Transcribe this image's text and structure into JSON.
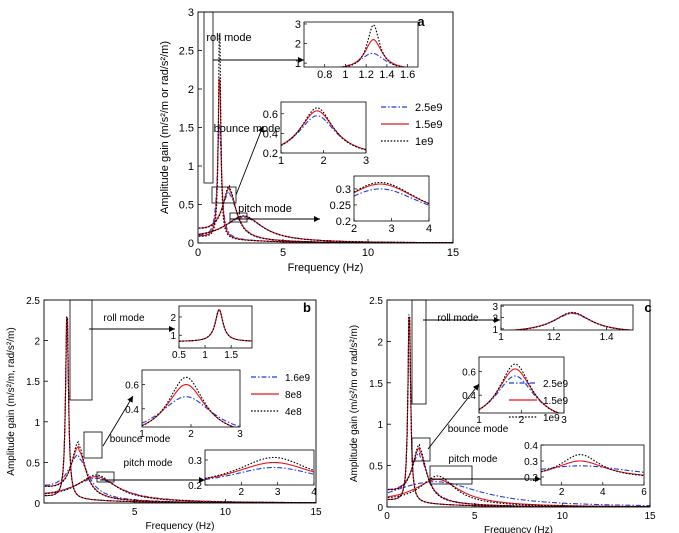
{
  "chart_data": [
    {
      "type": "line",
      "panel_label": "a",
      "xlabel": "Frequency (Hz)",
      "ylabel": "Amplitude gain (m/s²/m or rad/s²/m)",
      "xlim": [
        0,
        15
      ],
      "ylim": [
        0,
        3
      ],
      "xticks": [
        0,
        5,
        10,
        15
      ],
      "yticks": [
        0,
        0.5,
        1,
        1.5,
        2,
        2.5,
        3
      ],
      "legend": "right",
      "series": [
        {
          "name": "2.5e9",
          "color": "#1f3fd6",
          "style": "dashdot",
          "roll": [
            1.26,
            1.5,
            0.32
          ],
          "bounce": [
            1.85,
            0.58,
            0.6
          ],
          "pitch": [
            2.7,
            0.3,
            1.0
          ]
        },
        {
          "name": "1.5e9",
          "color": "#e8141c",
          "style": "solid",
          "roll": [
            1.27,
            2.2,
            0.22
          ],
          "bounce": [
            1.85,
            0.63,
            0.56
          ],
          "pitch": [
            2.7,
            0.315,
            0.95
          ]
        },
        {
          "name": "1e9",
          "color": "#000000",
          "style": "dotted",
          "roll": [
            1.27,
            2.95,
            0.16
          ],
          "bounce": [
            1.85,
            0.66,
            0.52
          ],
          "pitch": [
            2.7,
            0.32,
            0.92
          ]
        }
      ],
      "insets": [
        {
          "label": "roll mode",
          "xlim": [
            0.6,
            1.7
          ],
          "ylim": [
            0.8,
            3.1
          ],
          "xticks": [
            0.8,
            1,
            1.2,
            1.4,
            1.6
          ],
          "yticks": [
            1,
            2,
            3
          ]
        },
        {
          "label": "bounce mode",
          "xlim": [
            1,
            3
          ],
          "ylim": [
            0.2,
            0.72
          ],
          "xticks": [
            1,
            2,
            3
          ],
          "yticks": [
            0.2,
            0.4,
            0.6
          ]
        },
        {
          "label": "pitch mode",
          "xlim": [
            2,
            4
          ],
          "ylim": [
            0.2,
            0.34
          ],
          "xticks": [
            2,
            3,
            4
          ],
          "yticks": [
            0.2,
            0.25,
            0.3
          ]
        }
      ]
    },
    {
      "type": "line",
      "panel_label": "b",
      "xlabel": "Frequency (Hz)",
      "ylabel": "Amplitude gain (m/s²/m, rad/s²/m)",
      "xlim": [
        0,
        15
      ],
      "ylim": [
        0,
        2.5
      ],
      "xticks": [
        5,
        10,
        15
      ],
      "yticks": [
        0,
        0.5,
        1,
        1.5,
        2,
        2.5
      ],
      "legend": "right",
      "series": [
        {
          "name": "1.6e9",
          "color": "#1f3fd6",
          "style": "dashdot",
          "roll": [
            1.27,
            2.4,
            0.2
          ],
          "bounce": [
            1.9,
            0.5,
            0.75
          ],
          "pitch": [
            2.9,
            0.27,
            1.1
          ]
        },
        {
          "name": "8e8",
          "color": "#e8141c",
          "style": "solid",
          "roll": [
            1.27,
            2.4,
            0.2
          ],
          "bounce": [
            1.9,
            0.6,
            0.55
          ],
          "pitch": [
            2.9,
            0.29,
            1.0
          ]
        },
        {
          "name": "4e8",
          "color": "#000000",
          "style": "dotted",
          "roll": [
            1.27,
            2.4,
            0.2
          ],
          "bounce": [
            1.9,
            0.66,
            0.5
          ],
          "pitch": [
            2.9,
            0.31,
            0.9
          ]
        }
      ],
      "insets": [
        {
          "label": "roll mode",
          "xlim": [
            0.5,
            1.9
          ],
          "ylim": [
            0.3,
            2.6
          ],
          "xticks": [
            0.5,
            1,
            1.5
          ],
          "yticks": [
            1,
            2
          ]
        },
        {
          "label": "bounce mode",
          "xlim": [
            1,
            3
          ],
          "ylim": [
            0.25,
            0.72
          ],
          "xticks": [
            1,
            2,
            3
          ],
          "yticks": [
            0.4,
            0.6
          ]
        },
        {
          "label": "pitch mode",
          "xlim": [
            1,
            4
          ],
          "ylim": [
            0.2,
            0.34
          ],
          "xticks": [
            2,
            3,
            4
          ],
          "yticks": [
            0.2,
            0.3
          ]
        }
      ]
    },
    {
      "type": "line",
      "panel_label": "c",
      "xlabel": "Frequency (Hz)",
      "ylabel": "Amplitude gain (m/s²/m or rad/s²/m)",
      "xlim": [
        0,
        15
      ],
      "ylim": [
        0,
        2.5
      ],
      "xticks": [
        0,
        5,
        10,
        15
      ],
      "yticks": [
        0,
        0.5,
        1,
        1.5,
        2,
        2.5
      ],
      "legend": "right",
      "series": [
        {
          "name": "2.5e9",
          "color": "#1f3fd6",
          "style": "dashdot",
          "roll": [
            1.27,
            2.35,
            0.2
          ],
          "bounce": [
            1.85,
            0.56,
            0.62
          ],
          "pitch": [
            2.9,
            0.27,
            2.2
          ]
        },
        {
          "name": "1.5e9",
          "color": "#e8141c",
          "style": "solid",
          "roll": [
            1.27,
            2.4,
            0.2
          ],
          "bounce": [
            1.85,
            0.62,
            0.56
          ],
          "pitch": [
            2.9,
            0.3,
            1.1
          ]
        },
        {
          "name": "1e9",
          "color": "#000000",
          "style": "dotted",
          "roll": [
            1.27,
            2.45,
            0.19
          ],
          "bounce": [
            1.85,
            0.66,
            0.52
          ],
          "pitch": [
            2.9,
            0.34,
            0.85
          ]
        }
      ],
      "insets": [
        {
          "label": "roll mode",
          "xlim": [
            1,
            1.5
          ],
          "ylim": [
            0.9,
            3.1
          ],
          "xticks": [
            1,
            1.2,
            1.4
          ],
          "yticks": [
            1,
            2,
            3
          ]
        },
        {
          "label": "bounce mode",
          "xlim": [
            1,
            3
          ],
          "ylim": [
            0.25,
            0.72
          ],
          "xticks": [
            1,
            2,
            3
          ],
          "yticks": [
            0.4,
            0.6
          ]
        },
        {
          "label": "pitch mode",
          "xlim": [
            1,
            6
          ],
          "ylim": [
            0.15,
            0.4
          ],
          "xticks": [
            2,
            4,
            6
          ],
          "yticks": [
            0.2,
            0.3,
            0.4
          ]
        }
      ]
    }
  ]
}
